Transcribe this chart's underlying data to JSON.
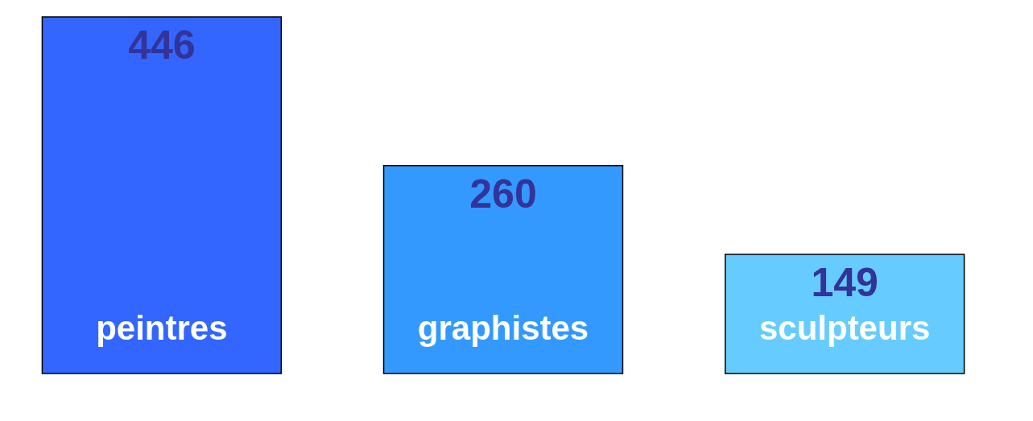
{
  "chart_data": {
    "type": "bar",
    "categories": [
      "peintres",
      "graphistes",
      "sculpteurs"
    ],
    "values": [
      446,
      260,
      149
    ],
    "colors": [
      "#3366ff",
      "#3399ff",
      "#66ccff"
    ],
    "data_labels": true,
    "tick_labels": false
  }
}
